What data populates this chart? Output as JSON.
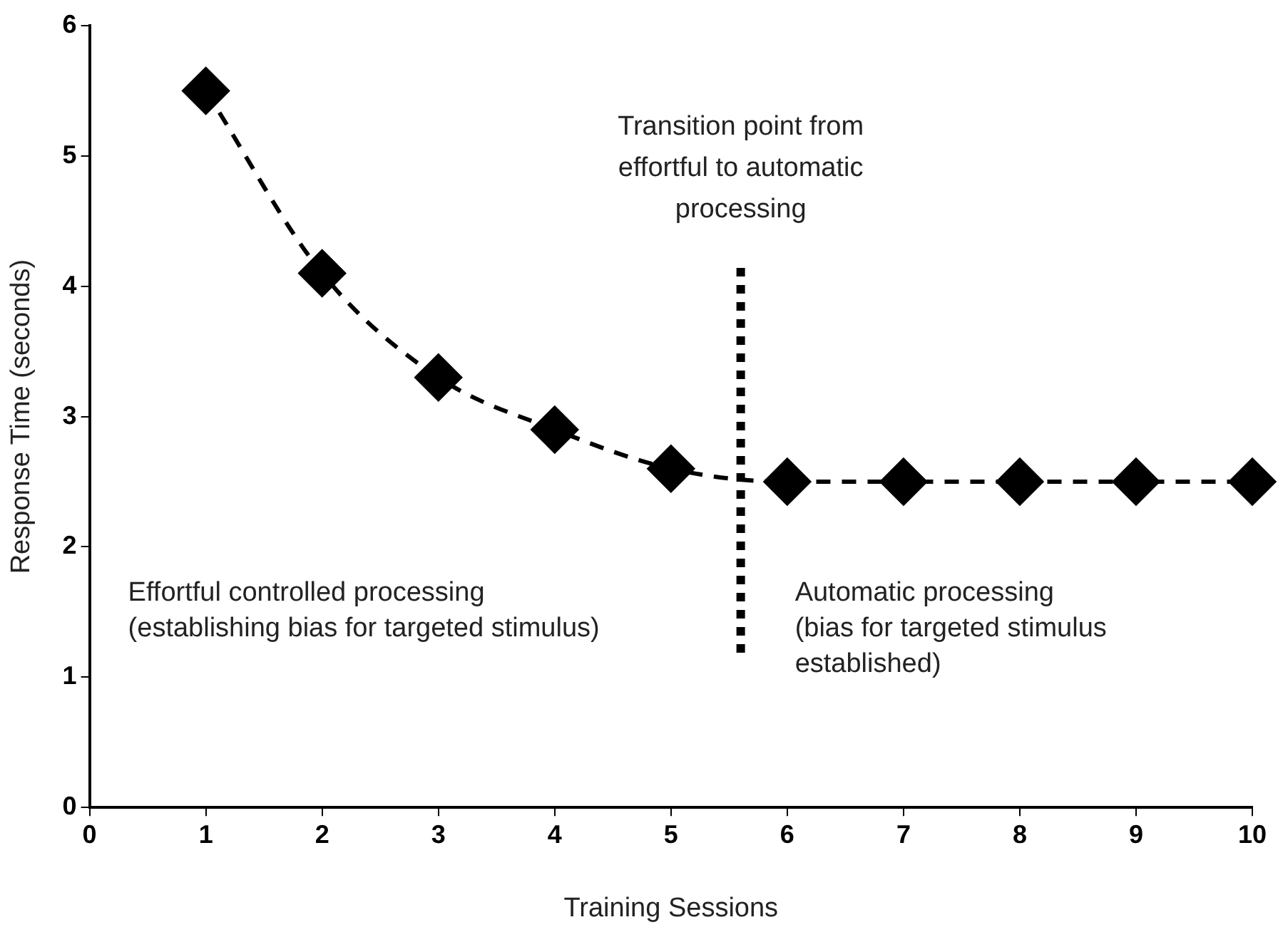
{
  "chart_data": {
    "type": "line",
    "xlabel": "Training Sessions",
    "ylabel": "Response Time (seconds)",
    "x": [
      1,
      2,
      3,
      4,
      5,
      6,
      7,
      8,
      9,
      10
    ],
    "series": [
      {
        "color": "#000000",
        "values": [
          5.5,
          4.1,
          3.3,
          2.9,
          2.6,
          2.5,
          2.5,
          2.5,
          2.5,
          2.5
        ]
      }
    ],
    "xlim": [
      0,
      10
    ],
    "xticks": [
      0,
      1,
      2,
      3,
      4,
      5,
      6,
      7,
      8,
      9,
      10
    ],
    "ylim": [
      0,
      6
    ],
    "yticks": [
      0,
      1,
      2,
      3,
      4,
      5,
      6
    ],
    "marker": "diamond",
    "line_style": "dashed",
    "grid": false,
    "legend": false,
    "ref_lines": [
      {
        "axis": "x",
        "value": 5.6,
        "label": "Transition point from\neffortful to automatic\nprocessing",
        "line_style": "dotted",
        "color": "#000000"
      }
    ],
    "annotations": [
      "Effortful controlled processing\n(establishing bias for targeted stimulus)",
      "Automatic processing\n(bias for targeted stimulus\nestablished)"
    ]
  }
}
